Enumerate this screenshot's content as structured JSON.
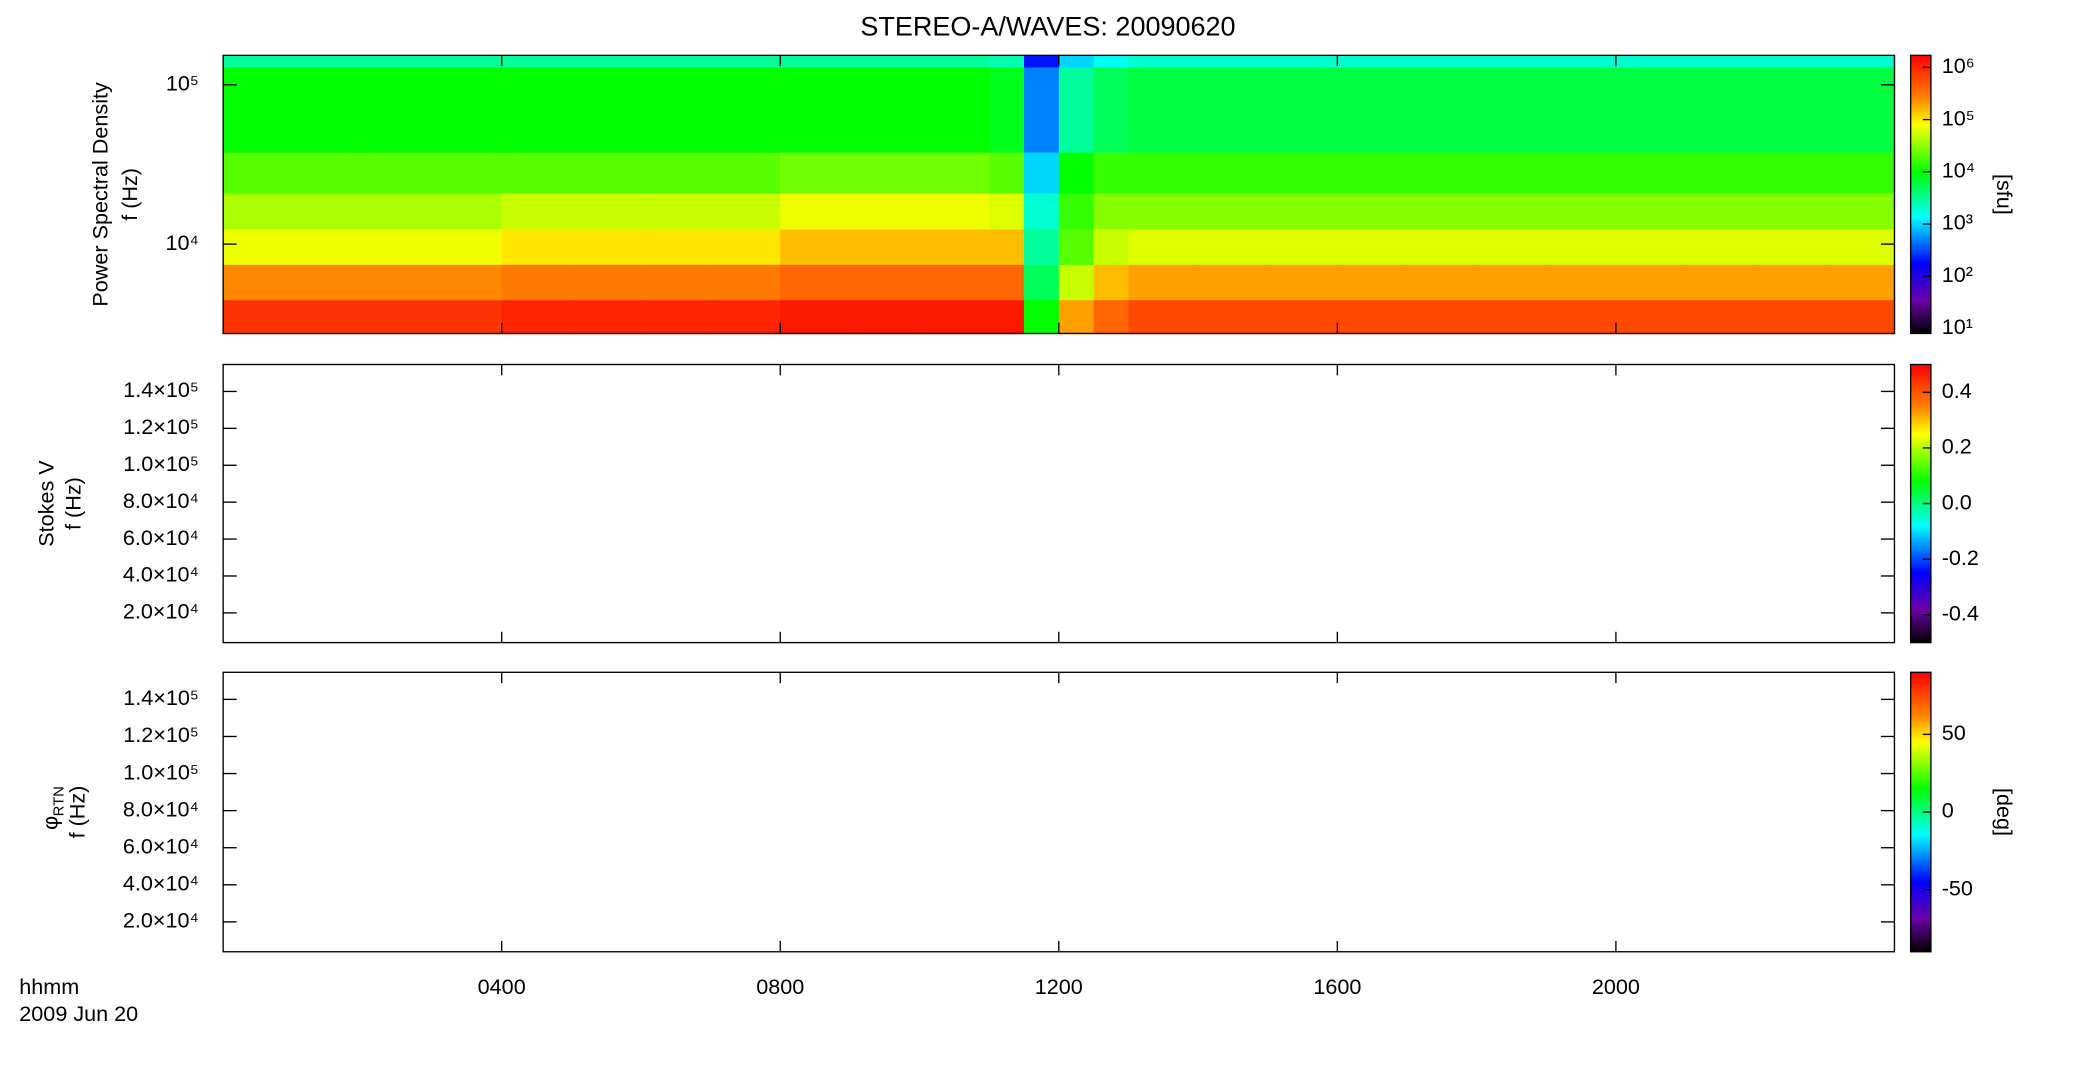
{
  "chart_data": [
    {
      "type": "heatmap",
      "title": "STEREO-A/WAVES: 20090620",
      "ylabel": [
        "Power Spectral Density",
        "f (Hz)"
      ],
      "ylog": true,
      "ylim": [
        2750,
        153000
      ],
      "yticks": [
        {
          "value": 10000,
          "label": "10⁴"
        },
        {
          "value": 100000,
          "label": "10⁵"
        }
      ],
      "xlim": [
        0,
        24
      ],
      "xticks": [
        {
          "value": 4,
          "label": "0400"
        },
        {
          "value": 8,
          "label": "0800"
        },
        {
          "value": 12,
          "label": "1200"
        },
        {
          "value": 16,
          "label": "1600"
        },
        {
          "value": 20,
          "label": "2000"
        }
      ],
      "x_bins": [
        0,
        1,
        2,
        3,
        4,
        5,
        6,
        7,
        8,
        9,
        10,
        11,
        11.5,
        12,
        12.5,
        13,
        14,
        15,
        16,
        17,
        18,
        19,
        20,
        21,
        22,
        23,
        24
      ],
      "y_bins": [
        2750,
        4500,
        7500,
        12500,
        21000,
        38000,
        130000,
        153000
      ],
      "z": [
        [
          800000,
          800000,
          800000,
          800000,
          1000000,
          1000000,
          1000000,
          1000000,
          1200000,
          1200000,
          1200000,
          1200000,
          10000,
          200000,
          400000,
          600000,
          600000,
          600000,
          600000,
          600000,
          600000,
          600000,
          600000,
          600000,
          600000,
          600000
        ],
        [
          250000,
          250000,
          250000,
          250000,
          300000,
          300000,
          300000,
          300000,
          400000,
          400000,
          400000,
          400000,
          5000,
          50000,
          150000,
          200000,
          200000,
          200000,
          200000,
          200000,
          200000,
          200000,
          200000,
          200000,
          200000,
          200000
        ],
        [
          70000,
          70000,
          70000,
          70000,
          100000,
          100000,
          100000,
          100000,
          150000,
          150000,
          150000,
          150000,
          3000,
          20000,
          50000,
          60000,
          60000,
          60000,
          60000,
          60000,
          60000,
          60000,
          60000,
          60000,
          60000,
          60000
        ],
        [
          40000,
          40000,
          40000,
          40000,
          50000,
          50000,
          50000,
          50000,
          70000,
          70000,
          70000,
          60000,
          2000,
          15000,
          30000,
          30000,
          30000,
          30000,
          30000,
          30000,
          30000,
          30000,
          30000,
          30000,
          30000,
          30000
        ],
        [
          20000,
          20000,
          20000,
          20000,
          20000,
          20000,
          20000,
          20000,
          25000,
          25000,
          25000,
          20000,
          1000,
          10000,
          15000,
          15000,
          15000,
          15000,
          15000,
          15000,
          15000,
          15000,
          15000,
          15000,
          15000,
          15000
        ],
        [
          10000,
          10000,
          10000,
          10000,
          10000,
          10000,
          10000,
          10000,
          10000,
          10000,
          10000,
          8000,
          500,
          3000,
          5000,
          6000,
          6000,
          6000,
          6000,
          6000,
          6000,
          6000,
          6000,
          6000,
          6000,
          6000
        ],
        [
          3000,
          3000,
          3000,
          3000,
          3000,
          3000,
          3000,
          3000,
          3000,
          3000,
          3000,
          2500,
          200,
          1000,
          1500,
          2000,
          2000,
          2000,
          2000,
          2000,
          2000,
          2000,
          2000,
          2000,
          2000,
          2000
        ]
      ],
      "zlog": true,
      "zlim": [
        8,
        1700000
      ],
      "zticks": [
        {
          "value": 10,
          "label": "10¹"
        },
        {
          "value": 100,
          "label": "10²"
        },
        {
          "value": 1000,
          "label": "10³"
        },
        {
          "value": 10000,
          "label": "10⁴"
        },
        {
          "value": 100000,
          "label": "10⁵"
        },
        {
          "value": 1000000,
          "label": "10⁶"
        }
      ],
      "zlabel": "[sfu]"
    },
    {
      "type": "heatmap",
      "ylabel": [
        "Stokes V",
        "f (Hz)"
      ],
      "ylim": [
        3900,
        154600
      ],
      "yticks": [
        {
          "value": 20000,
          "label": "2.0×10⁴"
        },
        {
          "value": 40000,
          "label": "4.0×10⁴"
        },
        {
          "value": 60000,
          "label": "6.0×10⁴"
        },
        {
          "value": 80000,
          "label": "8.0×10⁴"
        },
        {
          "value": 100000,
          "label": "1.0×10⁵"
        },
        {
          "value": 120000,
          "label": "1.2×10⁵"
        },
        {
          "value": 140000,
          "label": "1.4×10⁵"
        }
      ],
      "xlim": [
        0,
        24
      ],
      "xticks": [
        {
          "value": 4,
          "label": "0400"
        },
        {
          "value": 8,
          "label": "0800"
        },
        {
          "value": 12,
          "label": "1200"
        },
        {
          "value": 16,
          "label": "1600"
        },
        {
          "value": 20,
          "label": "2000"
        }
      ],
      "zlim": [
        -0.5,
        0.5
      ],
      "zticks": [
        -0.4,
        -0.2,
        {
          "value": 0,
          "label": "0.0"
        },
        0.2,
        0.4
      ]
    },
    {
      "type": "heatmap",
      "ylabel_symbol": "φ",
      "ylabel_subscript": "RTN",
      "ylabel": [
        "f (Hz)"
      ],
      "ylim": [
        3900,
        154600
      ],
      "yticks": [
        {
          "value": 20000,
          "label": "2.0×10⁴"
        },
        {
          "value": 40000,
          "label": "4.0×10⁴"
        },
        {
          "value": 60000,
          "label": "6.0×10⁴"
        },
        {
          "value": 80000,
          "label": "8.0×10⁴"
        },
        {
          "value": 100000,
          "label": "1.0×10⁵"
        },
        {
          "value": 120000,
          "label": "1.2×10⁵"
        },
        {
          "value": 140000,
          "label": "1.4×10⁵"
        }
      ],
      "xlim": [
        0,
        24
      ],
      "xticks": [
        {
          "value": 4,
          "label": "0400"
        },
        {
          "value": 8,
          "label": "0800"
        },
        {
          "value": 12,
          "label": "1200"
        },
        {
          "value": 16,
          "label": "1600"
        },
        {
          "value": 20,
          "label": "2000"
        }
      ],
      "show_xtick_labels": true,
      "xlabel_lines": [
        "hhmm",
        "2009 Jun 20"
      ],
      "zlim": [
        -90,
        90
      ],
      "zticks": [
        -50,
        0,
        50
      ],
      "zlabel": "[deg]"
    }
  ]
}
